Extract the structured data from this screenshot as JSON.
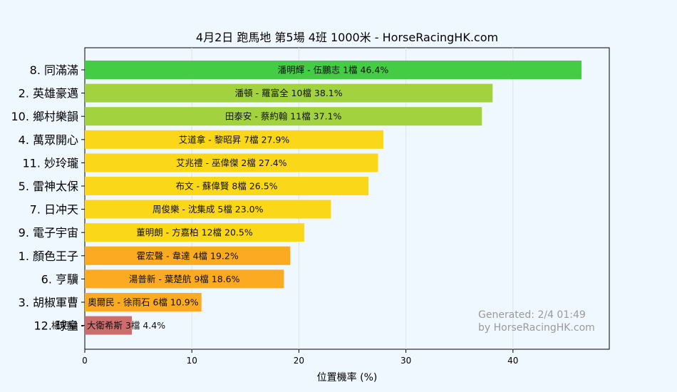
{
  "chart_data": {
    "type": "bar",
    "orientation": "horizontal",
    "title": "4月2日  跑馬地  第5場  4班  1000米 - HorseRacingHK.com",
    "xlabel": "位置機率 (%)",
    "ylabel": "",
    "xlim": [
      0,
      49
    ],
    "xticks": [
      0,
      10,
      20,
      30,
      40
    ],
    "grid": "vertical",
    "categories": [
      "8. 同滿滿",
      "2. 英雄豪邁",
      "10. 鄉村樂韻",
      "4. 萬眾開心",
      "11. 妙玲瓏",
      "5. 雷神太保",
      "7. 日冲天",
      "9. 電子宇宙",
      "1. 顏色王子",
      "6. 亨驥",
      "3. 胡椒軍曹",
      "12. 球皇"
    ],
    "values": [
      46.4,
      38.1,
      37.1,
      27.9,
      27.4,
      26.5,
      23.0,
      20.5,
      19.2,
      18.6,
      10.9,
      4.4
    ],
    "bar_labels": [
      "潘明輝 - 伍鵬志 1檔  46.4%",
      "潘頓 - 羅富全 10檔  38.1%",
      "田泰安 - 蔡約翰 11檔  37.1%",
      "艾道拿 - 黎昭昇 7檔  27.9%",
      "艾兆禮 - 巫偉傑 2檔  27.4%",
      "布文 - 蘇偉賢 8檔  26.5%",
      "周俊樂 - 沈集成 5檔  23.0%",
      "董明朗 - 方嘉柏 12檔  20.5%",
      "霍宏聲 - 韋達 4檔  19.2%",
      "湯普新 - 葉楚航 9檔  18.6%",
      "奧爾民 - 徐雨石 6檔  10.9%",
      "楊明綸 - 大衛希斯 3檔  4.4%"
    ],
    "bar_colors": [
      "#44cc44",
      "#a2d33e",
      "#a2d33e",
      "#fbd71a",
      "#fbd71a",
      "#fbd71a",
      "#fbd71a",
      "#fbd71a",
      "#fbaa22",
      "#fbaa22",
      "#fbaa22",
      "#cd6d6d"
    ]
  },
  "watermark": {
    "line1": "Generated: 2/4 01:49",
    "line2": "by HorseRacingHK.com"
  }
}
